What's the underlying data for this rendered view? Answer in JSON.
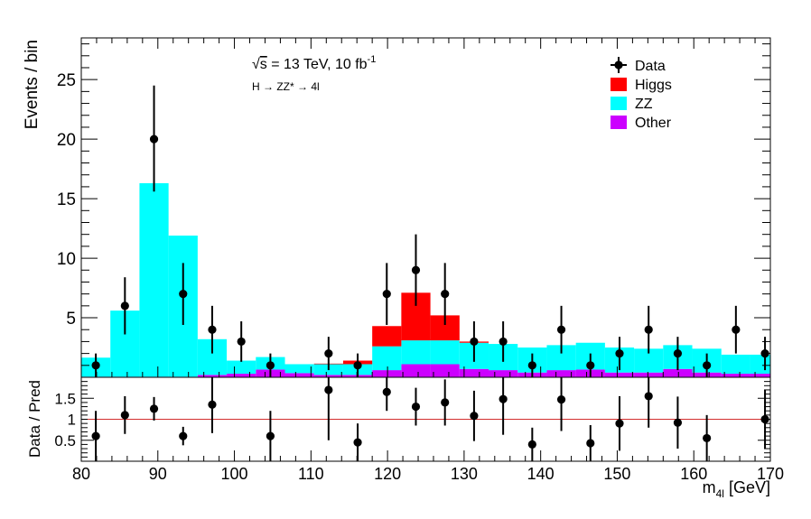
{
  "chart_data": [
    {
      "type": "bar",
      "stacked": true,
      "histogram": true,
      "xlim": [
        80,
        170
      ],
      "ylim": [
        0,
        28.5
      ],
      "ylabel": "Events / bin",
      "annotation_energy": "√s = 13 TeV, 10 fb⁻¹",
      "annotation_energy_parts": {
        "sqrt": "√",
        "s": "s",
        "rest": " = 13 TeV, 10 fb",
        "exp": "-1"
      },
      "annotation_process": "H → ZZ* → 4l",
      "y_ticks": [
        5,
        10,
        15,
        20,
        25
      ],
      "bin_edges": [
        80,
        83.8,
        87.6,
        91.4,
        95.2,
        99,
        102.8,
        106.6,
        110.4,
        114.2,
        118,
        121.8,
        125.6,
        129.4,
        133.2,
        137,
        140.8,
        144.6,
        148.4,
        152.2,
        156,
        159.8,
        163.6,
        167.4,
        170
      ],
      "series": [
        {
          "name": "Other",
          "color": "#cc00ff",
          "values": [
            0.05,
            0.05,
            0.05,
            0.05,
            0.2,
            0.3,
            0.65,
            0.35,
            0.2,
            0.2,
            0.6,
            1.1,
            1.1,
            0.7,
            0.6,
            0.4,
            0.6,
            0.65,
            0.4,
            0.4,
            0.7,
            0.4,
            0.3,
            0.3,
            0.3
          ]
        },
        {
          "name": "ZZ",
          "color": "#00ffff",
          "values": [
            1.6,
            5.55,
            16.25,
            11.85,
            3.0,
            1.1,
            1.05,
            0.75,
            0.9,
            0.9,
            2.0,
            2.0,
            2.0,
            2.2,
            2.2,
            2.1,
            2.1,
            2.25,
            2.1,
            2.0,
            2.0,
            2.0,
            1.6,
            1.6,
            1.8
          ]
        },
        {
          "name": "Higgs",
          "color": "#ff0000",
          "values": [
            0,
            0,
            0,
            0,
            0,
            0,
            0,
            0,
            0.05,
            0.3,
            1.7,
            4.0,
            2.1,
            0.1,
            0,
            0,
            0,
            0,
            0,
            0,
            0,
            0,
            0,
            0,
            0
          ]
        }
      ],
      "data": {
        "name": "Data",
        "x": [
          81.9,
          85.7,
          89.5,
          93.3,
          97.1,
          100.9,
          104.7,
          112.3,
          116.1,
          119.9,
          123.7,
          127.5,
          131.3,
          135.1,
          138.9,
          142.7,
          146.5,
          150.3,
          154.1,
          157.9,
          161.7,
          165.5,
          169.3
        ],
        "y": [
          1,
          6,
          20,
          7,
          4,
          3,
          1,
          2,
          1,
          7,
          9,
          7,
          3,
          3,
          1,
          4,
          1,
          2,
          4,
          2,
          1,
          4,
          2
        ],
        "err_low": [
          1,
          2.4,
          4.4,
          2.6,
          2,
          1.7,
          1,
          1.4,
          1,
          2.6,
          3,
          2.6,
          1.7,
          1.7,
          1,
          2,
          1,
          1.4,
          2,
          1.4,
          1,
          2,
          1.4
        ],
        "err_high": [
          1,
          2.4,
          4.5,
          2.6,
          2,
          1.7,
          1,
          1.4,
          1,
          2.6,
          3,
          2.6,
          1.7,
          1.7,
          1,
          2,
          1,
          1.4,
          2,
          1.4,
          1,
          2,
          1.4
        ]
      },
      "legend": {
        "position": "top-right",
        "entries": [
          {
            "label": "Data",
            "kind": "marker",
            "color": "#000000"
          },
          {
            "label": "Higgs",
            "kind": "box",
            "color": "#ff0000"
          },
          {
            "label": "ZZ",
            "kind": "box",
            "color": "#00ffff"
          },
          {
            "label": "Other",
            "kind": "box",
            "color": "#cc00ff"
          }
        ]
      }
    },
    {
      "type": "scatter",
      "xlim": [
        80,
        170
      ],
      "ylim": [
        0,
        2
      ],
      "xlabel_main": "m",
      "xlabel_sub": "4l",
      "xlabel_unit": " [GeV]",
      "ylabel": "Data / Pred",
      "x_ticks": [
        80,
        90,
        100,
        110,
        120,
        130,
        140,
        150,
        160,
        170
      ],
      "y_ticks": [
        {
          "value": 0.5,
          "label": "0.5"
        },
        {
          "value": 1,
          "label": "1"
        },
        {
          "value": 1.5,
          "label": "1.5"
        }
      ],
      "reference_line": {
        "value": 1,
        "color": "#d32f2f"
      },
      "series": [
        {
          "x": [
            81.9,
            85.7,
            89.5,
            93.3,
            97.1,
            104.7,
            112.3,
            116.1,
            119.9,
            123.7,
            127.5,
            131.3,
            135.1,
            138.9,
            142.7,
            146.5,
            150.3,
            154.1,
            157.9,
            161.7,
            169.3
          ],
          "y": [
            0.6,
            1.1,
            1.25,
            0.6,
            1.35,
            0.6,
            1.7,
            0.45,
            1.65,
            1.3,
            1.4,
            1.08,
            1.48,
            0.4,
            1.47,
            0.43,
            0.9,
            1.55,
            0.92,
            0.55,
            1.0
          ],
          "err": [
            0.6,
            0.45,
            0.28,
            0.22,
            0.68,
            0.6,
            1.2,
            0.45,
            0.45,
            0.45,
            0.55,
            0.6,
            0.85,
            0.4,
            0.75,
            0.43,
            0.65,
            0.75,
            0.62,
            0.55,
            0.7
          ]
        }
      ]
    }
  ]
}
